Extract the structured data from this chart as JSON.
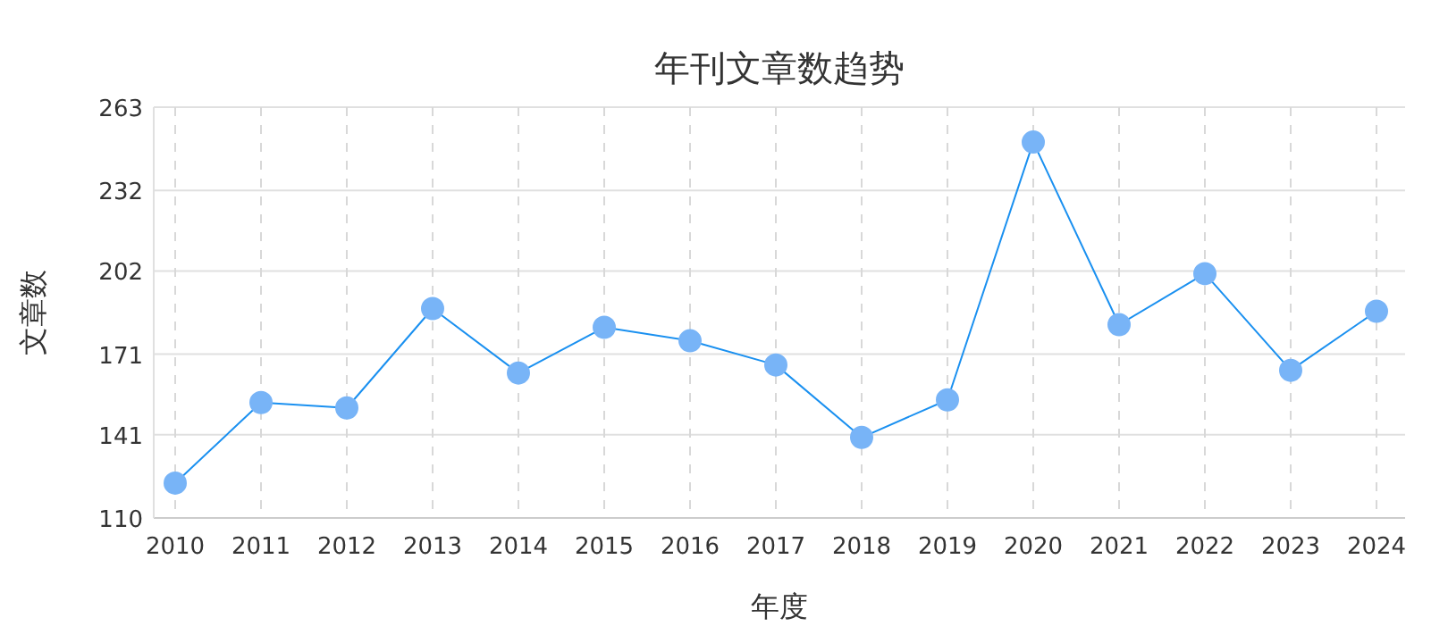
{
  "chart_data": {
    "type": "line",
    "title": "年刊文章数趋势",
    "xlabel": "年度",
    "ylabel": "文章数",
    "categories": [
      "2010",
      "2011",
      "2012",
      "2013",
      "2014",
      "2015",
      "2016",
      "2017",
      "2018",
      "2019",
      "2020",
      "2021",
      "2022",
      "2023",
      "2024"
    ],
    "series": [
      {
        "color": "#1a90f0",
        "values": [
          123,
          153,
          151,
          188,
          164,
          181,
          176,
          167,
          140,
          154,
          250,
          182,
          201,
          165,
          187
        ]
      }
    ],
    "ylim": [
      110,
      263
    ],
    "yticks": [
      110,
      141,
      171,
      202,
      232,
      263
    ],
    "grid": true,
    "marker": "circle",
    "line_style": "solid"
  }
}
